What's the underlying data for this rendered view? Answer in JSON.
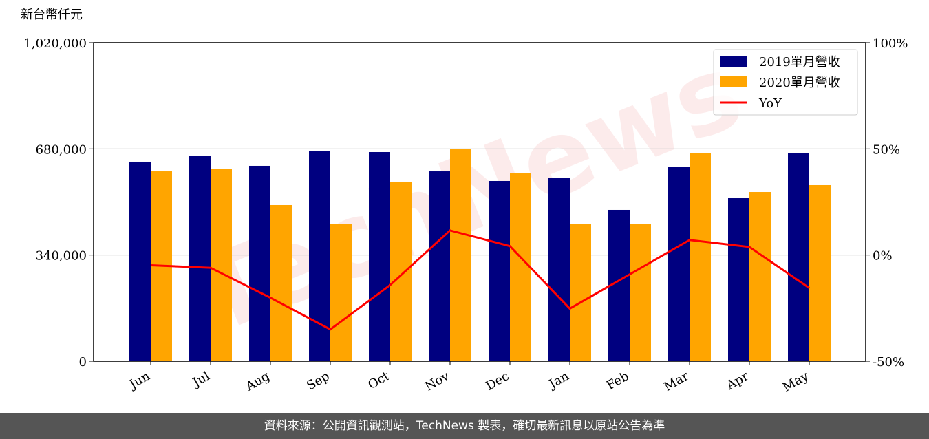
{
  "chart_data": {
    "type": "bar",
    "y_label": "新台幣仟元",
    "watermark": "TechNews",
    "categories": [
      "Jun",
      "Jul",
      "Aug",
      "Sep",
      "Oct",
      "Nov",
      "Dec",
      "Jan",
      "Feb",
      "Mar",
      "Apr",
      "May"
    ],
    "series": [
      {
        "name": "2019單月營收",
        "type": "bar",
        "color": "#000080",
        "values": [
          638900,
          656500,
          625700,
          674100,
          669700,
          608000,
          577200,
          586000,
          484700,
          621300,
          522100,
          667500
        ]
      },
      {
        "name": "2020單月營收",
        "type": "bar",
        "color": "#ffa500",
        "values": [
          608000,
          616800,
          500100,
          438400,
          575000,
          678500,
          601400,
          438400,
          440600,
          665300,
          541900,
          564000
        ]
      },
      {
        "name": "YoY",
        "type": "line",
        "axis": "y2",
        "color": "#ff0000",
        "values": [
          -4.8,
          -6.0,
          -20.1,
          -35.0,
          -14.1,
          11.6,
          4.2,
          -25.2,
          -9.1,
          7.1,
          3.8,
          -15.5
        ]
      }
    ],
    "ylim": [
      0,
      1020000
    ],
    "yticks": [
      0,
      {
        "value": 340000,
        "label": "340,000"
      },
      {
        "value": 680000,
        "label": "680,000"
      },
      {
        "value": 1020000,
        "label": "1,020,000"
      }
    ],
    "y2lim": [
      -50,
      100
    ],
    "y2ticks": [
      {
        "value": -50,
        "label": "-50%"
      },
      {
        "value": 0,
        "label": "0%"
      },
      {
        "value": 50,
        "label": "50%"
      },
      {
        "value": 100,
        "label": "100%"
      }
    ],
    "grid": true,
    "legend": "upper right"
  },
  "footer": "資料來源：公開資訊觀測站，TechNews 製表，確切最新訊息以原站公告為準"
}
